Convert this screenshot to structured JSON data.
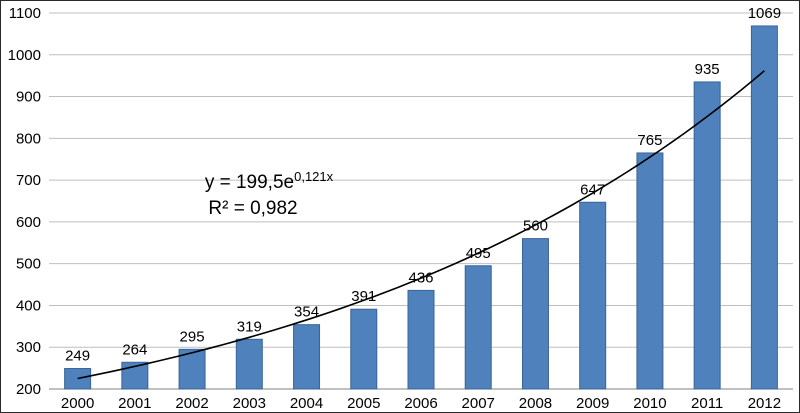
{
  "chart_data": {
    "type": "bar",
    "title": "",
    "xlabel": "",
    "ylabel": "",
    "categories": [
      "2000",
      "2001",
      "2002",
      "2003",
      "2004",
      "2005",
      "2006",
      "2007",
      "2008",
      "2009",
      "2010",
      "2011",
      "2012"
    ],
    "values": [
      249,
      264,
      295,
      319,
      354,
      391,
      436,
      495,
      560,
      647,
      765,
      935,
      1069
    ],
    "ylim": [
      200,
      1100
    ],
    "ytick_step": 100,
    "grid": true,
    "legend": "none",
    "bar_color": "#4f81bd",
    "bar_border_color": "#3a6596",
    "gridline_color": "#bfbfbf",
    "axis_color": "#808080",
    "label_color": "#000000",
    "trendline": {
      "type": "exponential",
      "a": 199.5,
      "b": 0.121,
      "color": "#000000",
      "equation_base": "y = 199,5e",
      "equation_exponent": "0,121x",
      "r_squared_label": "R² = 0,982"
    }
  }
}
